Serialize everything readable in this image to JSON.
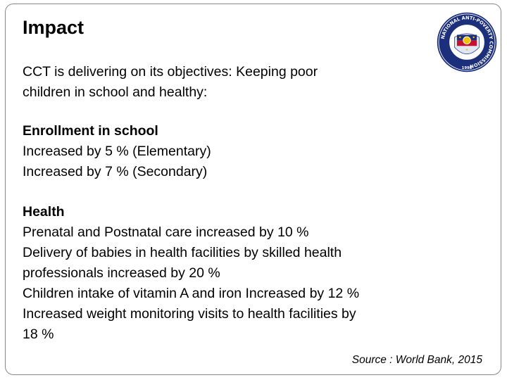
{
  "slide": {
    "title": "Impact",
    "intro": [
      "CCT is delivering on its objectives:  Keeping poor",
      "children in school and healthy:"
    ],
    "enrollment": {
      "heading": "Enrollment in school",
      "lines": [
        "Increased by 5 % (Elementary)",
        "Increased by 7 % (Secondary)"
      ]
    },
    "health": {
      "heading": "Health",
      "lines": [
        "Prenatal and Postnatal care increased by 10 %",
        "Delivery of babies in health facilities by skilled health",
        "professionals increased by 20 %",
        "Children intake of vitamin A and iron Increased by 12 %",
        "Increased weight monitoring visits to health facilities by",
        "18 %"
      ]
    },
    "source": "Source : World Bank, 2015",
    "logo": {
      "name": "seal-icon",
      "ring_text": "NATIONAL ANTI-POVERTY COMMISSION",
      "year": "1998",
      "colors": {
        "ring": "#1c2f7a",
        "inner": "#ffffff",
        "sun": "#f2c200",
        "red": "#c8102e"
      }
    }
  }
}
